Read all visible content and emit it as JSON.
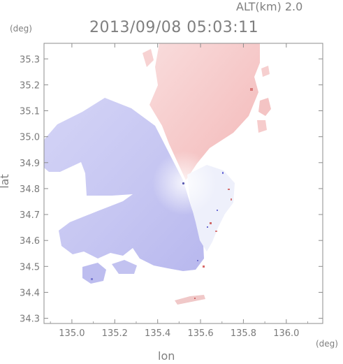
{
  "header": {
    "altitude_label": "ALT(km) 2.0",
    "timestamp": "2013/09/08 05:03:11"
  },
  "axes": {
    "lat_unit": "(deg)",
    "lon_unit": "(deg)",
    "lat_label": "lat",
    "lon_label": "lon",
    "lat_ticks": [
      34.3,
      34.4,
      34.5,
      34.6,
      34.7,
      34.8,
      34.9,
      35.0,
      35.1,
      35.2,
      35.3
    ],
    "lon_ticks": [
      135.0,
      135.2,
      135.4,
      135.6,
      135.8,
      136.0
    ],
    "lat_range": [
      34.28,
      35.36
    ],
    "lon_range": [
      134.87,
      136.17
    ]
  },
  "colors": {
    "approaching": "#c8c8f4",
    "receding": "#f6c6c6",
    "frame": "#8c8c8c"
  },
  "radar_center": {
    "lon": 135.52,
    "lat": 34.82
  }
}
